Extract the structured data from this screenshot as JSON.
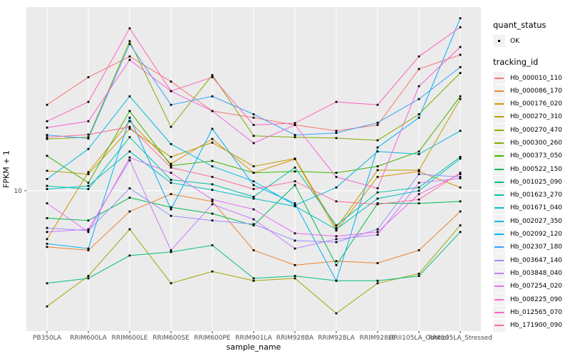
{
  "figure": {
    "background": "#FFFFFF",
    "panel_background": "#EBEBEB",
    "grid_color": "#FFFFFF",
    "tick_color": "#333333",
    "tick_label_color": "#4D4D4D"
  },
  "axes": {
    "x_title": "sample_name",
    "y_title": "FPKM + 1",
    "y_tick_labels": [
      "10"
    ]
  },
  "legend": {
    "quant_status": {
      "title": "quant_status",
      "items": [
        {
          "label": "OK",
          "marker": "black-point"
        }
      ]
    },
    "tracking_id": {
      "title": "tracking_id"
    }
  },
  "chart_data": {
    "type": "line",
    "title": "",
    "xlabel": "sample_name",
    "ylabel": "FPKM + 1",
    "yscale": "log10",
    "ylim": [
      1.86,
      90.3
    ],
    "yticks": [
      10
    ],
    "grid": true,
    "legend_position": "right",
    "point_marker": "small black square (quant_status OK)",
    "categories": [
      "PB350LA",
      "RRIM600LA",
      "RRIM600LE",
      "RRIM600SE",
      "RRIM600PE",
      "RRIM901LA",
      "RRIM928BA",
      "RRIM928LA",
      "RRIM928LE",
      "RRII105LA_Control",
      "RRII105LA_Stressed"
    ],
    "series": [
      {
        "name": "Hb_000010_110",
        "color": "#F8766D",
        "values": [
          28,
          39,
          50,
          37,
          26,
          24,
          22,
          20.5,
          22,
          43,
          51
        ]
      },
      {
        "name": "Hb_000086_170",
        "color": "#EA8331",
        "values": [
          5.1,
          4.9,
          7.8,
          9.6,
          8.8,
          4.9,
          4.1,
          4.3,
          4.2,
          4.9,
          7.8
        ]
      },
      {
        "name": "Hb_000176_020",
        "color": "#D89000",
        "values": [
          5.6,
          12.5,
          23,
          13.8,
          18.6,
          12.4,
          14.6,
          6.2,
          11.8,
          12.6,
          10.4
        ]
      },
      {
        "name": "Hb_000270_310",
        "color": "#C09B00",
        "values": [
          12.7,
          12.2,
          21,
          15,
          17.8,
          13.4,
          14.7,
          6.4,
          12.8,
          12.8,
          30
        ]
      },
      {
        "name": "Hb_000270_470",
        "color": "#A3A500",
        "values": [
          2.5,
          3.6,
          6.3,
          3.3,
          3.8,
          3.4,
          3.5,
          2.3,
          3.3,
          3.7,
          6.6
        ]
      },
      {
        "name": "Hb_000300_260",
        "color": "#7CAE00",
        "values": [
          18.6,
          19,
          60,
          21.5,
          40,
          19.3,
          19,
          18.8,
          18.3,
          25,
          41
        ]
      },
      {
        "name": "Hb_000373_050",
        "color": "#39B600",
        "values": [
          15.2,
          11,
          26,
          13.5,
          14.3,
          12.4,
          12.6,
          12.4,
          13.4,
          16,
          31
        ]
      },
      {
        "name": "Hb_000522_150",
        "color": "#00BB4E",
        "values": [
          7.2,
          7.0,
          9.2,
          8.2,
          7.6,
          6.6,
          10.7,
          4.1,
          8.6,
          8.6,
          8.8
        ]
      },
      {
        "name": "Hb_001025_090",
        "color": "#00BF7D",
        "values": [
          3.3,
          3.5,
          4.6,
          4.8,
          5.2,
          3.5,
          3.6,
          3.4,
          3.4,
          3.6,
          6.1
        ]
      },
      {
        "name": "Hb_001623_270",
        "color": "#00C1A3",
        "values": [
          10.6,
          10.2,
          19,
          11.4,
          10.8,
          9.3,
          13.2,
          6.6,
          9.8,
          10.4,
          15
        ]
      },
      {
        "name": "Hb_001671_040",
        "color": "#00BFC4",
        "values": [
          10.2,
          10.6,
          16,
          11.0,
          10.1,
          9.1,
          8.3,
          6.3,
          9.1,
          10.0,
          14.7
        ]
      },
      {
        "name": "Hb_002027_350",
        "color": "#00BAE0",
        "values": [
          11.5,
          16.5,
          31,
          17.5,
          13.4,
          11.2,
          8.4,
          10.4,
          16,
          15.5,
          20.5
        ]
      },
      {
        "name": "Hb_002092_120",
        "color": "#00B0F6",
        "values": [
          5.3,
          5.0,
          24,
          8.0,
          21,
          10.7,
          8.6,
          3.4,
          16.8,
          24,
          79
        ]
      },
      {
        "name": "Hb_002307_180",
        "color": "#35A2FF",
        "values": [
          19.5,
          18.7,
          58,
          28,
          31,
          25,
          19.5,
          20,
          22.6,
          30,
          44
        ]
      },
      {
        "name": "Hb_003647_140",
        "color": "#9590FF",
        "values": [
          6.4,
          6.2,
          10.3,
          7.4,
          7.0,
          6.7,
          5.5,
          5.4,
          6.3,
          12.2,
          11.8
        ]
      },
      {
        "name": "Hb_003848_040",
        "color": "#C77CFF",
        "values": [
          6.1,
          6.3,
          14.4,
          4.9,
          8.5,
          7.1,
          5.0,
          5.6,
          5.9,
          11.0,
          11.6
        ]
      },
      {
        "name": "Hb_007254_020",
        "color": "#E76BF3",
        "values": [
          8.6,
          6.1,
          14.9,
          12.4,
          9.0,
          8.0,
          6.0,
          5.8,
          6.1,
          9.6,
          12.2
        ]
      },
      {
        "name": "Hb_008225_090",
        "color": "#FA62DB",
        "values": [
          21.3,
          23,
          48,
          33,
          26,
          17.7,
          22,
          11.8,
          10.3,
          35,
          56
        ]
      },
      {
        "name": "Hb_012565_070",
        "color": "#FF62BC",
        "values": [
          23,
          29,
          70,
          33,
          39,
          22,
          22.5,
          29,
          28,
          50,
          71
        ]
      },
      {
        "name": "Hb_171900_090",
        "color": "#FF6A98",
        "values": [
          19,
          19.6,
          21.5,
          13.2,
          11.8,
          10.2,
          11.2,
          8.8,
          8.5,
          9.0,
          12.4
        ]
      }
    ]
  }
}
